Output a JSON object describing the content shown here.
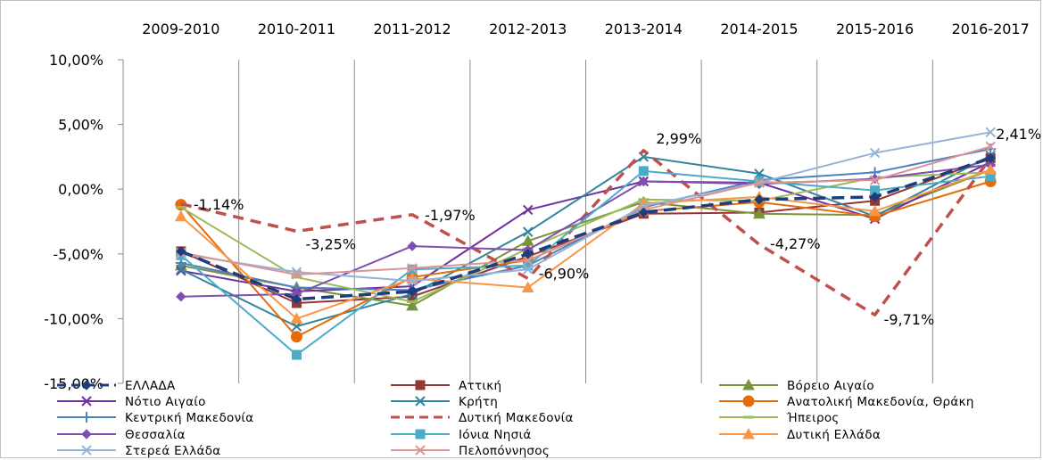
{
  "chart_data": {
    "type": "line",
    "categories": [
      "2009-2010",
      "2010-2011",
      "2011-2012",
      "2012-2013",
      "2013-2014",
      "2014-2015",
      "2015-2016",
      "2016-2017"
    ],
    "y_ticks": [
      "10,00%",
      "5,00%",
      "0,00%",
      "-5,00%",
      "-10,00%",
      "-15,00%"
    ],
    "ylim": [
      -15,
      10
    ],
    "grid": "vertical",
    "legend_position": "bottom",
    "series": [
      {
        "name": "ΕΛΛΑΔΑ",
        "color": "#1f3d7a",
        "dash": true,
        "marker": "diamond",
        "values": [
          -4.8,
          -8.5,
          -7.9,
          -5.0,
          -1.8,
          -0.8,
          -0.6,
          2.4
        ]
      },
      {
        "name": "Αττική",
        "color": "#943634",
        "dash": false,
        "marker": "square",
        "values": [
          -4.8,
          -8.8,
          -8.3,
          -5.2,
          -1.9,
          -1.8,
          -0.9,
          2.4
        ]
      },
      {
        "name": "Βόρειο Αιγαίο",
        "color": "#77933c",
        "dash": false,
        "marker": "triangle",
        "values": [
          -5.9,
          -7.6,
          -9.0,
          -4.0,
          -1.0,
          -1.9,
          -2.0,
          1.5
        ]
      },
      {
        "name": "Νότιο Αιγαίο",
        "color": "#7030a0",
        "dash": false,
        "marker": "x",
        "values": [
          -6.3,
          -7.9,
          -7.5,
          -1.6,
          0.6,
          0.5,
          -2.3,
          2.1
        ]
      },
      {
        "name": "Κρήτη",
        "color": "#31859c",
        "dash": false,
        "marker": "x",
        "values": [
          -6.2,
          -10.6,
          -8.1,
          -3.3,
          2.5,
          1.2,
          -2.1,
          2.6
        ]
      },
      {
        "name": "Ανατολική Μακεδονία, Θράκη",
        "color": "#e46c0a",
        "dash": false,
        "marker": "circle",
        "values": [
          -1.2,
          -11.4,
          -6.8,
          -5.5,
          -1.7,
          -1.0,
          -2.1,
          0.6
        ]
      },
      {
        "name": "Κεντρική Μακεδονία",
        "color": "#4f81bd",
        "dash": false,
        "marker": "plus",
        "values": [
          -5.7,
          -7.6,
          -7.8,
          -5.9,
          -1.4,
          0.7,
          1.3,
          3.1
        ]
      },
      {
        "name": "Δυτική Μακεδονία",
        "color": "#c0504d",
        "dash": true,
        "marker": "none",
        "values": [
          -1.14,
          -3.25,
          -1.97,
          -6.9,
          2.99,
          -4.27,
          -9.71,
          2.41
        ]
      },
      {
        "name": "Ήπειρος",
        "color": "#9bbb59",
        "dash": false,
        "marker": "dash",
        "values": [
          -1.4,
          -6.8,
          -8.7,
          -4.6,
          -0.8,
          -0.9,
          0.9,
          1.3
        ]
      },
      {
        "name": "Θεσσαλία",
        "color": "#7f4fb0",
        "dash": false,
        "marker": "diamond",
        "values": [
          -8.3,
          -8.1,
          -4.4,
          -4.7,
          0.6,
          0.4,
          0.8,
          1.9
        ]
      },
      {
        "name": "Ιόνια Νησιά",
        "color": "#4bacc6",
        "dash": false,
        "marker": "square",
        "values": [
          -5.1,
          -12.8,
          -6.2,
          -5.9,
          1.4,
          0.6,
          -0.1,
          1.0
        ]
      },
      {
        "name": "Δυτική Ελλάδα",
        "color": "#f79646",
        "dash": false,
        "marker": "triangle",
        "values": [
          -2.1,
          -10.0,
          -6.9,
          -7.6,
          -1.1,
          -0.6,
          -1.7,
          1.5
        ]
      },
      {
        "name": "Στερεά Ελλάδα",
        "color": "#95b3d7",
        "dash": false,
        "marker": "x",
        "values": [
          -5.0,
          -6.4,
          -7.1,
          -6.2,
          -1.3,
          0.5,
          2.8,
          4.4
        ]
      },
      {
        "name": "Πελοπόννησος",
        "color": "#d99694",
        "dash": false,
        "marker": "x",
        "values": [
          -4.9,
          -6.6,
          -6.1,
          -5.5,
          -1.6,
          0.5,
          0.7,
          3.3
        ]
      }
    ],
    "data_labels": [
      {
        "series": "Δυτική Μακεδονία",
        "index": 0,
        "text": "-1,14%"
      },
      {
        "series": "Δυτική Μακεδονία",
        "index": 1,
        "text": "-3,25%"
      },
      {
        "series": "Δυτική Μακεδονία",
        "index": 2,
        "text": "-1,97%"
      },
      {
        "series": "Δυτική Μακεδονία",
        "index": 3,
        "text": "-6,90%"
      },
      {
        "series": "Δυτική Μακεδονία",
        "index": 4,
        "text": "2,99%"
      },
      {
        "series": "Δυτική Μακεδονία",
        "index": 5,
        "text": "-4,27%"
      },
      {
        "series": "Δυτική Μακεδονία",
        "index": 6,
        "text": "-9,71%"
      },
      {
        "series": "Δυτική Μακεδονία",
        "index": 7,
        "text": "2,41%"
      }
    ]
  }
}
